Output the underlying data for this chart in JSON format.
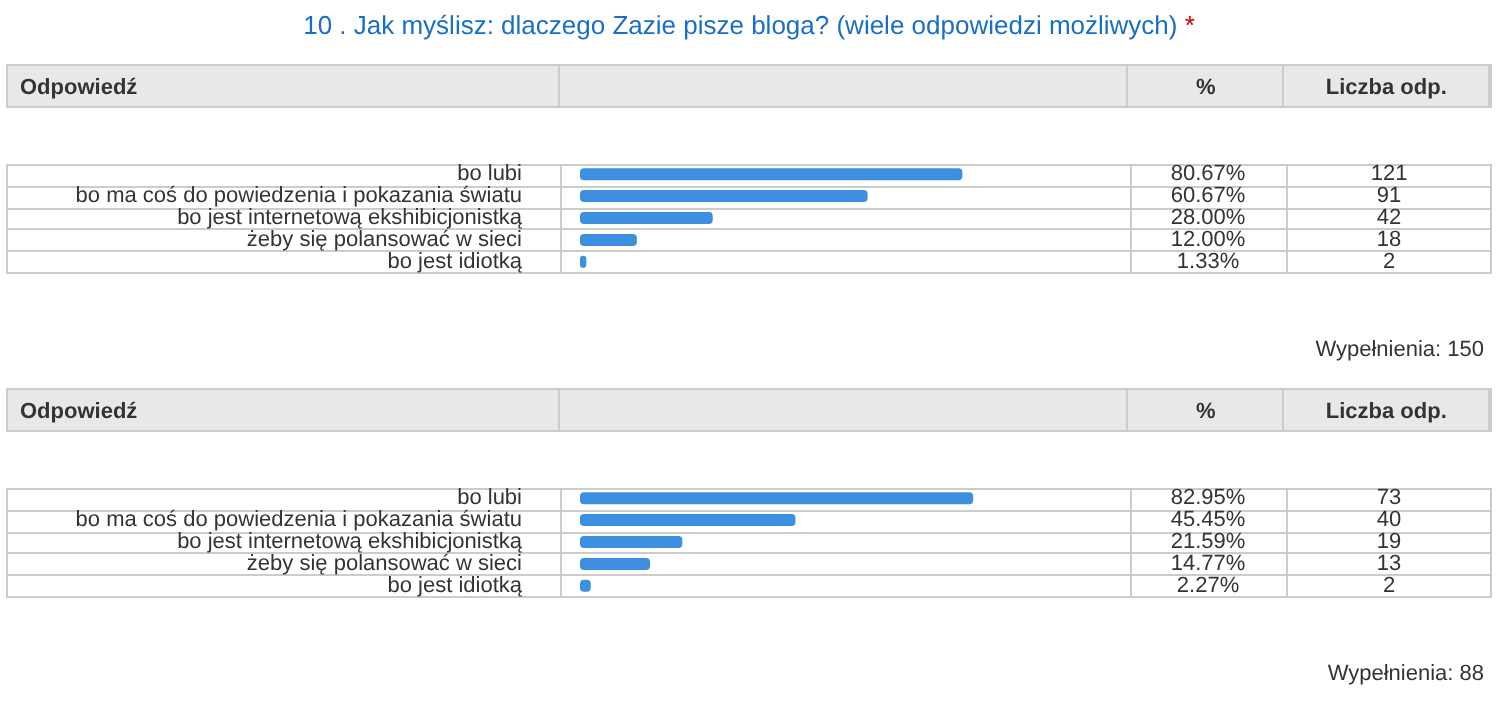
{
  "chart_data": [
    {
      "type": "bar",
      "orientation": "horizontal",
      "title": "10 . Jak myślisz: dlaczego Zazie pisze bloga? (wiele odpowiedzi możliwych) *",
      "categories": [
        "bo lubi",
        "bo ma coś do powiedzenia i pokazania światu",
        "bo jest internetową ekshibicjonistką",
        "żeby się polansować w sieci",
        "bo jest idiotką"
      ],
      "values": [
        80.67,
        60.67,
        28.0,
        12.0,
        1.33
      ],
      "value_labels": [
        "80.67%",
        "60.67%",
        "28.00%",
        "12.00%",
        "1.33%"
      ],
      "color": "#3d8fe0",
      "tick_labels": "y",
      "legend": false,
      "grid": false,
      "annotations": [
        "Odpowiedź",
        "%",
        "Liczba odp.",
        "Wypełnienia: 150",
        "121",
        "91",
        "42",
        "18",
        "2"
      ]
    },
    {
      "type": "bar",
      "orientation": "horizontal",
      "categories": [
        "bo lubi",
        "bo ma coś do powiedzenia i pokazania światu",
        "bo jest internetową ekshibicjonistką",
        "żeby się polansować w sieci",
        "bo jest idiotką"
      ],
      "values": [
        82.95,
        45.45,
        21.59,
        14.77,
        2.27
      ],
      "value_labels": [
        "82.95%",
        "45.45%",
        "21.59%",
        "14.77%",
        "2.27%"
      ],
      "color": "#3d8fe0",
      "tick_labels": "y",
      "legend": false,
      "grid": false,
      "annotations": [
        "Odpowiedź",
        "%",
        "Liczba odp.",
        "Wypełnienia: 88",
        "73",
        "40",
        "19",
        "13",
        "2"
      ]
    }
  ]
}
